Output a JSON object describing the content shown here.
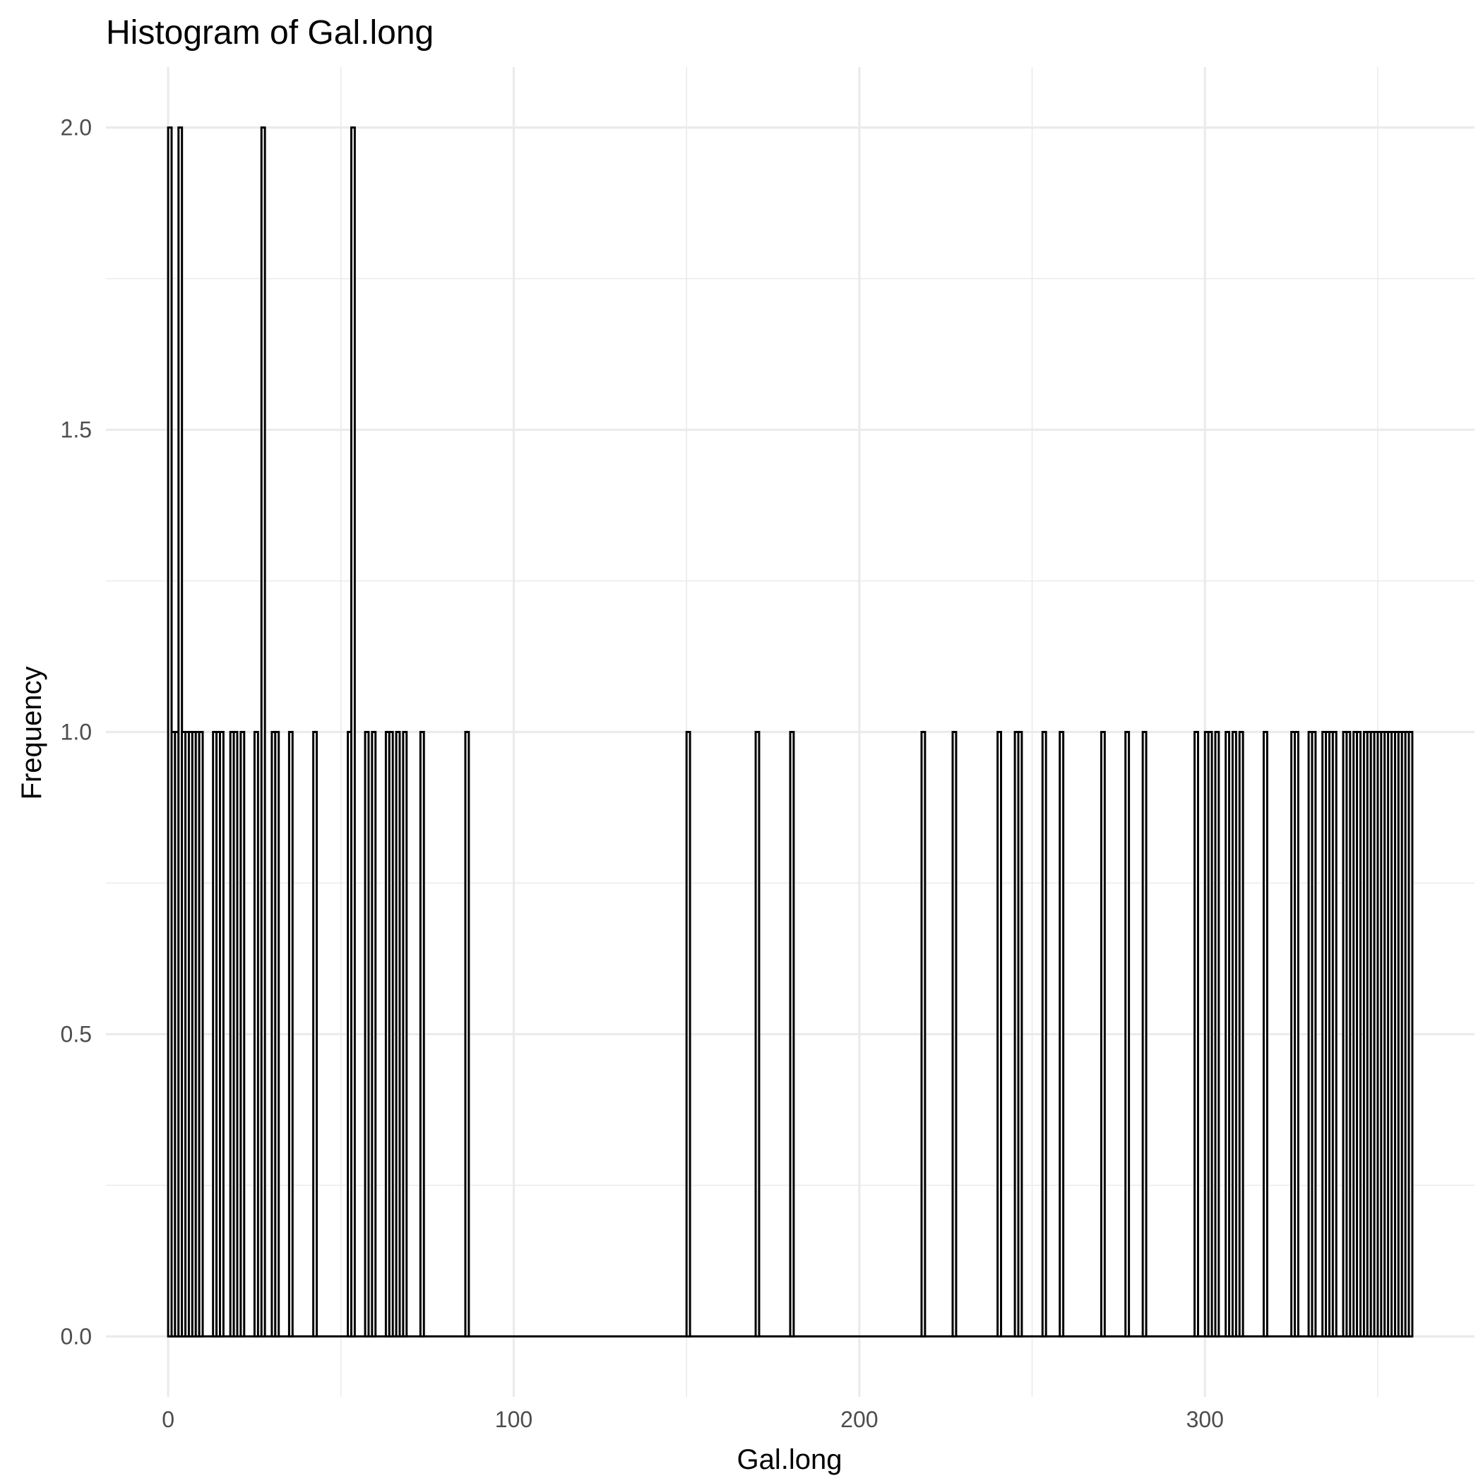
{
  "chart_data": {
    "type": "bar",
    "title": "Histogram of Gal.long",
    "xlabel": "Gal.long",
    "ylabel": "Frequency",
    "xlim": [
      -18,
      378
    ],
    "ylim": [
      -0.1,
      2.1
    ],
    "xticks": [
      0,
      100,
      200,
      300
    ],
    "xtick_labels": [
      "0",
      "100",
      "200",
      "300"
    ],
    "yticks": [
      0,
      0.5,
      1,
      1.5,
      2
    ],
    "ytick_labels": [
      "0.0",
      "0.5",
      "1.0",
      "1.5",
      "2.0"
    ],
    "grid": true,
    "bin_width": 1,
    "bar_color": "#000000",
    "bins": [
      {
        "x": 0.5,
        "count": 2
      },
      {
        "x": 1.5,
        "count": 1
      },
      {
        "x": 2.5,
        "count": 1
      },
      {
        "x": 3.5,
        "count": 2
      },
      {
        "x": 4.5,
        "count": 1
      },
      {
        "x": 5.5,
        "count": 1
      },
      {
        "x": 6.5,
        "count": 1
      },
      {
        "x": 7.5,
        "count": 1
      },
      {
        "x": 8.5,
        "count": 1
      },
      {
        "x": 9.5,
        "count": 1
      },
      {
        "x": 13.5,
        "count": 1
      },
      {
        "x": 14.5,
        "count": 1
      },
      {
        "x": 15.5,
        "count": 1
      },
      {
        "x": 18.5,
        "count": 1
      },
      {
        "x": 19.5,
        "count": 1
      },
      {
        "x": 21.5,
        "count": 1
      },
      {
        "x": 25.5,
        "count": 1
      },
      {
        "x": 27.5,
        "count": 2
      },
      {
        "x": 30.5,
        "count": 1
      },
      {
        "x": 31.5,
        "count": 1
      },
      {
        "x": 35.5,
        "count": 1
      },
      {
        "x": 42.5,
        "count": 1
      },
      {
        "x": 52.5,
        "count": 1
      },
      {
        "x": 53.5,
        "count": 2
      },
      {
        "x": 57.5,
        "count": 1
      },
      {
        "x": 59.5,
        "count": 1
      },
      {
        "x": 63.5,
        "count": 1
      },
      {
        "x": 64.5,
        "count": 1
      },
      {
        "x": 66.5,
        "count": 1
      },
      {
        "x": 68.5,
        "count": 1
      },
      {
        "x": 73.5,
        "count": 1
      },
      {
        "x": 86.5,
        "count": 1
      },
      {
        "x": 150.5,
        "count": 1
      },
      {
        "x": 170.5,
        "count": 1
      },
      {
        "x": 180.5,
        "count": 1
      },
      {
        "x": 218.5,
        "count": 1
      },
      {
        "x": 227.5,
        "count": 1
      },
      {
        "x": 240.5,
        "count": 1
      },
      {
        "x": 245.5,
        "count": 1
      },
      {
        "x": 246.5,
        "count": 1
      },
      {
        "x": 253.5,
        "count": 1
      },
      {
        "x": 258.5,
        "count": 1
      },
      {
        "x": 270.5,
        "count": 1
      },
      {
        "x": 277.5,
        "count": 1
      },
      {
        "x": 282.5,
        "count": 1
      },
      {
        "x": 297.5,
        "count": 1
      },
      {
        "x": 300.5,
        "count": 1
      },
      {
        "x": 301.5,
        "count": 1
      },
      {
        "x": 303.5,
        "count": 1
      },
      {
        "x": 306.5,
        "count": 1
      },
      {
        "x": 308.5,
        "count": 1
      },
      {
        "x": 310.5,
        "count": 1
      },
      {
        "x": 317.5,
        "count": 1
      },
      {
        "x": 325.5,
        "count": 1
      },
      {
        "x": 326.5,
        "count": 1
      },
      {
        "x": 330.5,
        "count": 1
      },
      {
        "x": 331.5,
        "count": 1
      },
      {
        "x": 334.5,
        "count": 1
      },
      {
        "x": 335.5,
        "count": 1
      },
      {
        "x": 336.5,
        "count": 1
      },
      {
        "x": 337.5,
        "count": 1
      },
      {
        "x": 340.5,
        "count": 1
      },
      {
        "x": 341.5,
        "count": 1
      },
      {
        "x": 343.5,
        "count": 1
      },
      {
        "x": 344.5,
        "count": 1
      },
      {
        "x": 346.5,
        "count": 1
      },
      {
        "x": 347.5,
        "count": 1
      },
      {
        "x": 348.5,
        "count": 1
      },
      {
        "x": 349.5,
        "count": 1
      },
      {
        "x": 350.5,
        "count": 1
      },
      {
        "x": 351.5,
        "count": 1
      },
      {
        "x": 352.5,
        "count": 1
      },
      {
        "x": 353.5,
        "count": 1
      },
      {
        "x": 354.5,
        "count": 1
      },
      {
        "x": 355.5,
        "count": 1
      },
      {
        "x": 356.5,
        "count": 1
      },
      {
        "x": 357.5,
        "count": 1
      },
      {
        "x": 358.5,
        "count": 1
      },
      {
        "x": 359.5,
        "count": 1
      }
    ]
  }
}
